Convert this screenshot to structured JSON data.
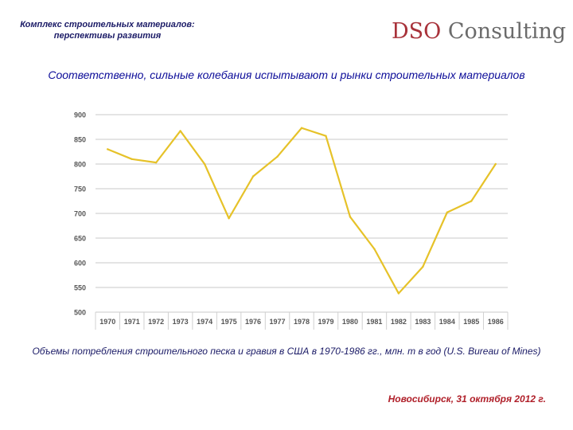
{
  "header": {
    "title_line1": "Комплекс строительных материалов:",
    "title_line2": "перспективы развития"
  },
  "logo": {
    "part1": "DSO",
    "part2": " Consulting"
  },
  "subtitle": "Соответственно, сильные колебания испытывают и рынки строительных материалов",
  "chart_data": {
    "type": "line",
    "title": "",
    "xlabel": "",
    "ylabel": "",
    "categories": [
      "1970",
      "1971",
      "1972",
      "1973",
      "1974",
      "1975",
      "1976",
      "1977",
      "1978",
      "1979",
      "1980",
      "1981",
      "1982",
      "1983",
      "1984",
      "1985",
      "1986"
    ],
    "series": [
      {
        "name": "Объемы потребления строительного песка и гравия",
        "color": "#e6c229",
        "values": [
          830,
          810,
          803,
          867,
          800,
          690,
          775,
          815,
          873,
          857,
          693,
          628,
          538,
          592,
          702,
          725,
          800
        ]
      }
    ],
    "ylim": [
      500,
      900
    ],
    "yticks": [
      900,
      850,
      800,
      750,
      700,
      650,
      600,
      550,
      500
    ],
    "grid": true,
    "legend": "none"
  },
  "caption": "Объемы потребления строительного песка и гравия в США в 1970-1986 гг., млн. т в год (U.S. Bureau of Mines)",
  "footer": {
    "date": "Новосибирск, 31 октября 2012 г."
  }
}
